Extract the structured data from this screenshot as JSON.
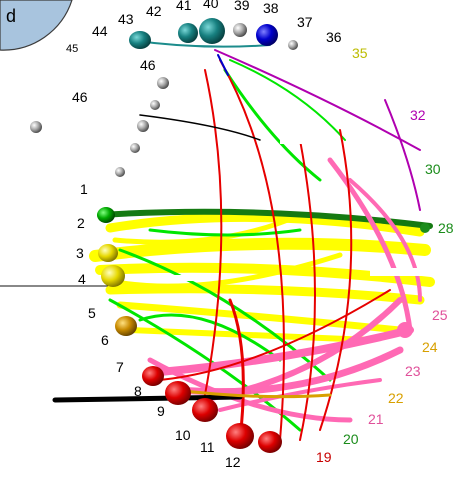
{
  "corner_badge": {
    "text": "d",
    "fill": "#a8c4de",
    "stroke": "#3c3c3c"
  },
  "node_labels": [
    "1",
    "2",
    "3",
    "4",
    "5",
    "6",
    "7",
    "8",
    "9",
    "10",
    "11",
    "12",
    "19",
    "20",
    "21",
    "22",
    "23",
    "24",
    "25",
    "28",
    "30",
    "32",
    "35",
    "36",
    "37",
    "38",
    "39",
    "40",
    "41",
    "42",
    "43",
    "44",
    "45",
    "46"
  ],
  "colors": {
    "yellow": "#ffff00",
    "green": "#00e600",
    "dark_green": "#157a12",
    "pink": "#ff69b4",
    "red": "#e60000",
    "magenta": "#b000b0",
    "teal": "#1c8c8c",
    "blue": "#0000cc",
    "gold": "#c88a00",
    "label_red": "#c80000",
    "label_green": "#1a8c1a",
    "label_pink": "#e0509a",
    "label_orange": "#d8a000",
    "label_yellow": "#bcbc00"
  }
}
